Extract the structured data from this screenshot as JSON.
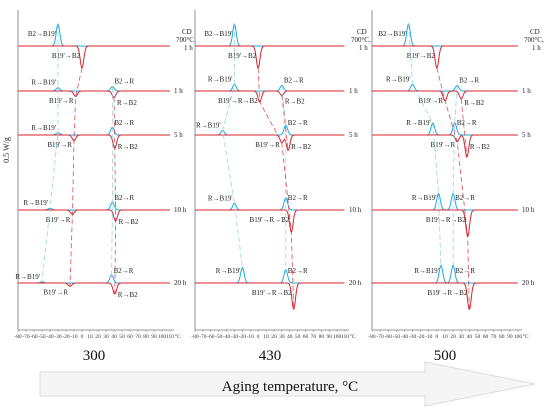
{
  "figure": {
    "y_axis_label": "0.5 W/g",
    "x_axis_title": "Aging temperature, °C",
    "colors": {
      "heating": "#d9232e",
      "cooling": "#1ea9dd",
      "dashed": "#7fc8e2",
      "axis": "#777777"
    }
  },
  "chart_data": [
    {
      "type": "line",
      "aging_temperature": "300",
      "x_ticks": [
        "-80",
        "-70",
        "-60",
        "-50",
        "-40",
        "-30",
        "-20",
        "-10",
        "0",
        "10",
        "20",
        "30",
        "40",
        "50",
        "60",
        "70",
        "80",
        "90",
        "100",
        "110",
        "°C"
      ],
      "x_range": [
        -80,
        110
      ],
      "traces": [
        {
          "condition": "CD 700°C, 1 h",
          "peaks": [
            {
              "dir": "cooling",
              "label": "B2→B19'",
              "x": -30,
              "amp": 1.0
            },
            {
              "dir": "heating",
              "label": "B19'→B2",
              "x": 0,
              "amp": 1.0
            }
          ]
        },
        {
          "condition": "1 h",
          "peaks": [
            {
              "dir": "cooling",
              "label": "R→B19'",
              "x": -30,
              "amp": 0.15
            },
            {
              "dir": "cooling",
              "label": "B2→R",
              "x": 38,
              "amp": 0.2
            },
            {
              "dir": "heating",
              "label": "B19'→R",
              "x": -8,
              "amp": 0.25
            },
            {
              "dir": "heating",
              "label": "R→B2",
              "x": 40,
              "amp": 0.3
            }
          ]
        },
        {
          "condition": "5 h",
          "peaks": [
            {
              "dir": "cooling",
              "label": "R→B19'",
              "x": -30,
              "amp": 0.1
            },
            {
              "dir": "cooling",
              "label": "B2→R",
              "x": 38,
              "amp": 0.35
            },
            {
              "dir": "heating",
              "label": "B19'→R",
              "x": -10,
              "amp": 0.25
            },
            {
              "dir": "heating",
              "label": "R→B2",
              "x": 41,
              "amp": 0.6
            }
          ]
        },
        {
          "condition": "10 h",
          "peaks": [
            {
              "dir": "cooling",
              "label": "R→B19'",
              "x": -40,
              "amp": 0.08
            },
            {
              "dir": "cooling",
              "label": "B2→R",
              "x": 38,
              "amp": 0.35
            },
            {
              "dir": "heating",
              "label": "B19'→R",
              "x": -12,
              "amp": 0.2
            },
            {
              "dir": "heating",
              "label": "R→B2",
              "x": 42,
              "amp": 0.5
            }
          ]
        },
        {
          "condition": "20 h",
          "peaks": [
            {
              "dir": "cooling",
              "label": "R→B19'",
              "x": -50,
              "amp": 0.05
            },
            {
              "dir": "cooling",
              "label": "B2→R",
              "x": 37,
              "amp": 0.35
            },
            {
              "dir": "heating",
              "label": "B19'→R",
              "x": -15,
              "amp": 0.15
            },
            {
              "dir": "heating",
              "label": "R→B2",
              "x": 41,
              "amp": 0.5
            }
          ]
        }
      ]
    },
    {
      "type": "line",
      "aging_temperature": "430",
      "x_ticks": [
        "-80",
        "-70",
        "-60",
        "-50",
        "-40",
        "-30",
        "-20",
        "-10",
        "0",
        "10",
        "20",
        "30",
        "40",
        "50",
        "60",
        "70",
        "80",
        "90",
        "100",
        "110",
        "°C"
      ],
      "x_range": [
        -80,
        110
      ],
      "traces": [
        {
          "condition": "CD 700°C, 1 h",
          "peaks": [
            {
              "dir": "cooling",
              "label": "B2→B19'",
              "x": -30,
              "amp": 1.0
            },
            {
              "dir": "heating",
              "label": "B19'→B2",
              "x": 0,
              "amp": 1.0
            }
          ]
        },
        {
          "condition": "1 h",
          "peaks": [
            {
              "dir": "cooling",
              "label": "R→B19'",
              "x": -30,
              "amp": 0.3
            },
            {
              "dir": "cooling",
              "label": "B2→R",
              "x": 30,
              "amp": 0.25
            },
            {
              "dir": "heating",
              "label": "B19'→R→B2",
              "x": 2,
              "amp": 0.5
            },
            {
              "dir": "heating",
              "label": "R→B2",
              "x": 30,
              "amp": 0.2
            }
          ]
        },
        {
          "condition": "5 h",
          "peaks": [
            {
              "dir": "cooling",
              "label": "R→B19'",
              "x": -45,
              "amp": 0.2
            },
            {
              "dir": "cooling",
              "label": "B2→R",
              "x": 35,
              "amp": 0.45
            },
            {
              "dir": "heating",
              "label": "B19'→R",
              "x": 30,
              "amp": 0.35
            },
            {
              "dir": "heating",
              "label": "R→B2",
              "x": 38,
              "amp": 0.7
            }
          ]
        },
        {
          "condition": "10 h",
          "peaks": [
            {
              "dir": "cooling",
              "label": "R→B19'",
              "x": -30,
              "amp": 0.3
            },
            {
              "dir": "cooling",
              "label": "B2→R",
              "x": 35,
              "amp": 0.55
            },
            {
              "dir": "heating",
              "label": "B19'→R→B2",
              "x": 42,
              "amp": 1.0
            }
          ]
        },
        {
          "condition": "20 h",
          "peaks": [
            {
              "dir": "cooling",
              "label": "R→B19'",
              "x": -20,
              "amp": 0.7
            },
            {
              "dir": "cooling",
              "label": "B2→R",
              "x": 35,
              "amp": 0.6
            },
            {
              "dir": "heating",
              "label": "B19'→R→B2",
              "x": 45,
              "amp": 1.2
            }
          ]
        }
      ]
    },
    {
      "type": "line",
      "aging_temperature": "500",
      "x_ticks": [
        "-80",
        "-70",
        "-60",
        "-50",
        "-40",
        "-30",
        "-20",
        "-10",
        "0",
        "10",
        "20",
        "30",
        "40",
        "50",
        "60",
        "70",
        "80",
        "90",
        "100",
        "°C"
      ],
      "x_range": [
        -80,
        100
      ],
      "traces": [
        {
          "condition": "CD 700°C, 1 h",
          "peaks": [
            {
              "dir": "cooling",
              "label": "B2→B19'",
              "x": -35,
              "amp": 1.0
            },
            {
              "dir": "heating",
              "label": "B19'→B2",
              "x": 0,
              "amp": 1.0
            }
          ]
        },
        {
          "condition": "1 h",
          "peaks": [
            {
              "dir": "cooling",
              "label": "R→B19'",
              "x": -30,
              "amp": 0.3
            },
            {
              "dir": "cooling",
              "label": "B2→R",
              "x": 25,
              "amp": 0.25
            },
            {
              "dir": "heating",
              "label": "B19'→R",
              "x": 10,
              "amp": 0.45
            },
            {
              "dir": "heating",
              "label": "R→B2",
              "x": 30,
              "amp": 0.35
            }
          ]
        },
        {
          "condition": "5 h",
          "peaks": [
            {
              "dir": "cooling",
              "label": "R→B19'",
              "x": -5,
              "amp": 0.55
            },
            {
              "dir": "cooling",
              "label": "B2→R",
              "x": 22,
              "amp": 0.55
            },
            {
              "dir": "heating",
              "label": "B19'→R",
              "x": 25,
              "amp": 0.3
            },
            {
              "dir": "heating",
              "label": "R→B2",
              "x": 37,
              "amp": 1.0
            }
          ]
        },
        {
          "condition": "10 h",
          "peaks": [
            {
              "dir": "cooling",
              "label": "R→B19'",
              "x": 2,
              "amp": 0.75
            },
            {
              "dir": "cooling",
              "label": "B2→R",
              "x": 20,
              "amp": 0.75
            },
            {
              "dir": "heating",
              "label": "B19'→R→B2",
              "x": 38,
              "amp": 1.2
            }
          ]
        },
        {
          "condition": "20 h",
          "peaks": [
            {
              "dir": "cooling",
              "label": "R→B19'",
              "x": 5,
              "amp": 0.8
            },
            {
              "dir": "cooling",
              "label": "B2→R",
              "x": 20,
              "amp": 0.8
            },
            {
              "dir": "heating",
              "label": "B19'→R→B2",
              "x": 40,
              "amp": 1.2
            }
          ]
        }
      ]
    }
  ]
}
